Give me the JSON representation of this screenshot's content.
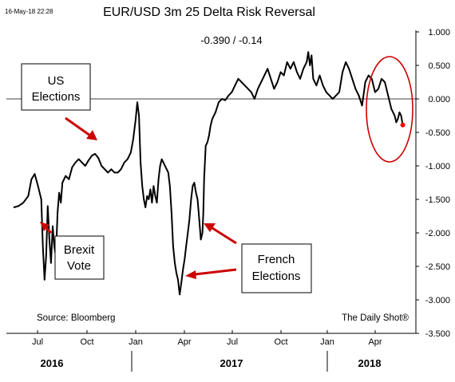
{
  "stamp": "16-May-18 22:28",
  "chart_data": {
    "type": "line",
    "title": "EUR/USD 3m 25 Delta Risk Reversal",
    "subtitle": "-0.390  /  -0.14",
    "source": "Source: Bloomberg",
    "credit": "The Daily Shot®",
    "y_ticks": [
      "1.000",
      "0.500",
      "0.000",
      "-0.500",
      "-1.000",
      "-1.500",
      "-2.000",
      "-2.500",
      "-3.000",
      "-3.500"
    ],
    "ylim": [
      -3.5,
      1.0
    ],
    "x_ticks": [
      "Jul",
      "Oct",
      "Jan",
      "Apr",
      "Jul",
      "Oct",
      "Jan",
      "Apr"
    ],
    "years": [
      "2016",
      "2017",
      "2018"
    ],
    "grid": false,
    "reference_line": 0,
    "annotations": [
      "US\nElections",
      "Brexit\nVote",
      "French\nElections"
    ],
    "series": [
      {
        "color": "#000000",
        "points": [
          [
            0.0,
            -1.62
          ],
          [
            0.3,
            -1.6
          ],
          [
            0.6,
            -1.55
          ],
          [
            0.9,
            -1.45
          ],
          [
            1.1,
            -1.2
          ],
          [
            1.3,
            -1.12
          ],
          [
            1.5,
            -1.3
          ],
          [
            1.7,
            -1.5
          ],
          [
            1.8,
            -2.2
          ],
          [
            1.9,
            -2.7
          ],
          [
            2.0,
            -2.35
          ],
          [
            2.1,
            -1.6
          ],
          [
            2.2,
            -2.1
          ],
          [
            2.3,
            -2.45
          ],
          [
            2.4,
            -1.9
          ],
          [
            2.5,
            -2.2
          ],
          [
            2.6,
            -2.35
          ],
          [
            2.7,
            -1.7
          ],
          [
            2.8,
            -1.4
          ],
          [
            2.9,
            -1.55
          ],
          [
            3.0,
            -1.25
          ],
          [
            3.2,
            -1.15
          ],
          [
            3.4,
            -1.2
          ],
          [
            3.6,
            -1.02
          ],
          [
            3.8,
            -0.95
          ],
          [
            4.0,
            -0.9
          ],
          [
            4.2,
            -0.95
          ],
          [
            4.4,
            -1.0
          ],
          [
            4.6,
            -0.92
          ],
          [
            4.8,
            -0.85
          ],
          [
            5.0,
            -0.82
          ],
          [
            5.2,
            -0.88
          ],
          [
            5.4,
            -1.0
          ],
          [
            5.6,
            -1.05
          ],
          [
            5.8,
            -1.1
          ],
          [
            6.0,
            -1.05
          ],
          [
            6.2,
            -1.1
          ],
          [
            6.4,
            -1.1
          ],
          [
            6.6,
            -1.05
          ],
          [
            6.8,
            -0.95
          ],
          [
            7.0,
            -0.9
          ],
          [
            7.2,
            -0.8
          ],
          [
            7.35,
            -0.6
          ],
          [
            7.5,
            -0.3
          ],
          [
            7.6,
            -0.05
          ],
          [
            7.7,
            -0.25
          ],
          [
            7.8,
            -0.95
          ],
          [
            7.9,
            -1.3
          ],
          [
            8.0,
            -1.5
          ],
          [
            8.1,
            -1.62
          ],
          [
            8.2,
            -1.45
          ],
          [
            8.3,
            -1.5
          ],
          [
            8.4,
            -1.35
          ],
          [
            8.5,
            -1.55
          ],
          [
            8.6,
            -1.3
          ],
          [
            8.7,
            -1.45
          ],
          [
            8.8,
            -1.55
          ],
          [
            8.9,
            -1.2
          ],
          [
            9.0,
            -1.0
          ],
          [
            9.1,
            -0.9
          ],
          [
            9.2,
            -0.95
          ],
          [
            9.3,
            -1.0
          ],
          [
            9.4,
            -1.05
          ],
          [
            9.5,
            -1.1
          ],
          [
            9.6,
            -1.3
          ],
          [
            9.7,
            -1.7
          ],
          [
            9.8,
            -2.2
          ],
          [
            9.9,
            -2.45
          ],
          [
            10.0,
            -2.6
          ],
          [
            10.1,
            -2.7
          ],
          [
            10.2,
            -2.92
          ],
          [
            10.3,
            -2.75
          ],
          [
            10.4,
            -2.55
          ],
          [
            10.5,
            -2.4
          ],
          [
            10.6,
            -2.2
          ],
          [
            10.7,
            -2.0
          ],
          [
            10.8,
            -1.8
          ],
          [
            10.9,
            -1.5
          ],
          [
            11.0,
            -1.3
          ],
          [
            11.1,
            -1.25
          ],
          [
            11.2,
            -1.4
          ],
          [
            11.3,
            -1.5
          ],
          [
            11.4,
            -1.8
          ],
          [
            11.5,
            -2.1
          ],
          [
            11.6,
            -2.0
          ],
          [
            11.65,
            -1.7
          ],
          [
            11.7,
            -1.2
          ],
          [
            11.8,
            -0.7
          ],
          [
            11.9,
            -0.65
          ],
          [
            12.0,
            -0.55
          ],
          [
            12.1,
            -0.4
          ],
          [
            12.2,
            -0.3
          ],
          [
            12.4,
            -0.2
          ],
          [
            12.6,
            -0.05
          ],
          [
            12.8,
            0.0
          ],
          [
            13.0,
            -0.02
          ],
          [
            13.2,
            0.05
          ],
          [
            13.4,
            0.1
          ],
          [
            13.6,
            0.2
          ],
          [
            13.8,
            0.3
          ],
          [
            14.0,
            0.25
          ],
          [
            14.2,
            0.2
          ],
          [
            14.4,
            0.15
          ],
          [
            14.6,
            0.1
          ],
          [
            14.8,
            0.0
          ],
          [
            15.0,
            0.15
          ],
          [
            15.2,
            0.25
          ],
          [
            15.4,
            0.35
          ],
          [
            15.6,
            0.45
          ],
          [
            15.8,
            0.3
          ],
          [
            16.0,
            0.15
          ],
          [
            16.2,
            0.25
          ],
          [
            16.4,
            0.4
          ],
          [
            16.6,
            0.35
          ],
          [
            16.8,
            0.55
          ],
          [
            17.0,
            0.45
          ],
          [
            17.2,
            0.55
          ],
          [
            17.4,
            0.4
          ],
          [
            17.6,
            0.3
          ],
          [
            17.8,
            0.45
          ],
          [
            18.0,
            0.55
          ],
          [
            18.1,
            0.7
          ],
          [
            18.2,
            0.5
          ],
          [
            18.3,
            0.65
          ],
          [
            18.4,
            0.3
          ],
          [
            18.6,
            0.2
          ],
          [
            18.8,
            0.35
          ],
          [
            19.0,
            0.2
          ],
          [
            19.2,
            0.1
          ],
          [
            19.4,
            0.05
          ],
          [
            19.6,
            0.0
          ],
          [
            19.8,
            0.05
          ],
          [
            20.0,
            0.1
          ],
          [
            20.2,
            0.4
          ],
          [
            20.4,
            0.55
          ],
          [
            20.6,
            0.45
          ],
          [
            20.8,
            0.3
          ],
          [
            21.0,
            0.15
          ],
          [
            21.2,
            0.05
          ],
          [
            21.4,
            -0.1
          ],
          [
            21.6,
            0.25
          ],
          [
            21.8,
            0.35
          ],
          [
            22.0,
            0.3
          ],
          [
            22.2,
            0.1
          ],
          [
            22.4,
            0.15
          ],
          [
            22.6,
            0.3
          ],
          [
            22.8,
            0.25
          ],
          [
            23.0,
            0.05
          ],
          [
            23.2,
            -0.15
          ],
          [
            23.4,
            -0.25
          ],
          [
            23.5,
            -0.35
          ],
          [
            23.6,
            -0.3
          ],
          [
            23.7,
            -0.2
          ],
          [
            23.8,
            -0.25
          ],
          [
            23.9,
            -0.39
          ]
        ],
        "last_point_color": "#ff0000"
      }
    ],
    "highlight": "red ellipse around latest values"
  }
}
